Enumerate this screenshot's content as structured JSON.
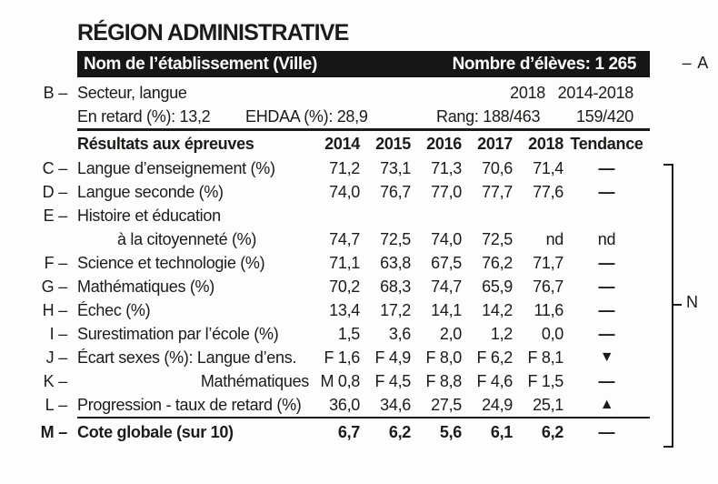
{
  "title": "RÉGION ADMINISTRATIVE",
  "colors": {
    "ink": "#1d1b19",
    "bar_background": "#161616",
    "paper": "#fdfdfc"
  },
  "callouts": {
    "dash": "–",
    "a": "A",
    "b": "B",
    "n": "N"
  },
  "header_bar": {
    "name": "Nom de l’établissement (Ville)",
    "students": "Nombre d’élèves: 1 265"
  },
  "school_info": {
    "sector": "Secteur, langue",
    "year": "2018",
    "year_range": "2014-2018",
    "late": "En retard (%): 13,2",
    "ehdaa": "EHDAA (%): 28,9",
    "rank": "Rang: 188/463",
    "rank_range": "159/420"
  },
  "results": {
    "header": {
      "label": "Résultats aux épreuves",
      "years": [
        "2014",
        "2015",
        "2016",
        "2017",
        "2018"
      ],
      "trend": "Tendance"
    },
    "rows": [
      {
        "letter": "C",
        "label": "Langue d’enseignement (%)",
        "values": [
          "71,2",
          "73,1",
          "71,3",
          "70,6",
          "71,4"
        ],
        "trend": "—"
      },
      {
        "letter": "D",
        "label": "Langue seconde (%)",
        "values": [
          "74,0",
          "76,7",
          "77,0",
          "77,7",
          "77,6"
        ],
        "trend": "—"
      },
      {
        "letter": "E",
        "label": "Histoire et éducation",
        "label2": "à la citoyenneté (%)",
        "values": [
          "74,7",
          "72,5",
          "74,0",
          "72,5",
          "nd"
        ],
        "trend": "nd"
      },
      {
        "letter": "F",
        "label": "Science et technologie (%)",
        "values": [
          "71,1",
          "63,8",
          "67,5",
          "76,2",
          "71,7"
        ],
        "trend": "—"
      },
      {
        "letter": "G",
        "label": "Mathématiques (%)",
        "values": [
          "70,2",
          "68,3",
          "74,7",
          "65,9",
          "76,7"
        ],
        "trend": "—"
      },
      {
        "letter": "H",
        "label": "Échec (%)",
        "values": [
          "13,4",
          "17,2",
          "14,1",
          "14,2",
          "11,6"
        ],
        "trend": "—"
      },
      {
        "letter": "I",
        "label": "Surestimation par l’école (%)",
        "values": [
          "1,5",
          "3,6",
          "2,0",
          "1,2",
          "0,0"
        ],
        "trend": "—"
      },
      {
        "letter": "J",
        "label": "Écart sexes (%): Langue d’ens.",
        "values": [
          "F 1,6",
          "F 4,9",
          "F 8,0",
          "F 6,2",
          "F 8,1"
        ],
        "trend": "▼"
      },
      {
        "letter": "K",
        "label": "Mathématiques",
        "values": [
          "M 0,8",
          "F 4,5",
          "F 8,8",
          "F 4,6",
          "F 1,5"
        ],
        "trend": "—"
      },
      {
        "letter": "L",
        "label": "Progression - taux de retard (%)",
        "values": [
          "36,0",
          "34,6",
          "27,5",
          "24,9",
          "25,1"
        ],
        "trend": "▲"
      },
      {
        "letter": "M",
        "label": "Cote globale (sur 10)",
        "values": [
          "6,7",
          "6,2",
          "5,6",
          "6,1",
          "6,2"
        ],
        "trend": "—"
      }
    ]
  }
}
